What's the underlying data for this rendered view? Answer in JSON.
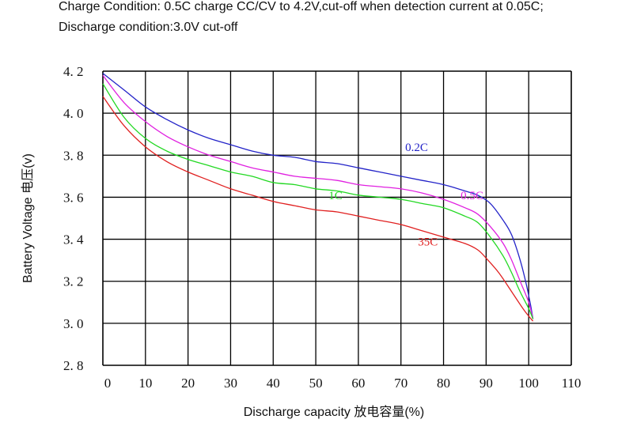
{
  "header": {
    "line1": "Charge Condition: 0.5C charge CC/CV to 4.2V,cut-off when detection current at 0.05C;",
    "line2": "Discharge condition:3.0V cut-off"
  },
  "chart_data": {
    "type": "line",
    "xlabel": "Discharge capacity 放电容量(%)",
    "ylabel": "Battery Voltage 电压(v)",
    "xlim": [
      0,
      110
    ],
    "ylim": [
      2.8,
      4.2
    ],
    "x_ticks": [
      "0",
      "10",
      "20",
      "30",
      "40",
      "50",
      "60",
      "70",
      "80",
      "90",
      "100",
      "110"
    ],
    "y_ticks": [
      "4. 2",
      "4. 0",
      "3. 8",
      "3. 6",
      "3. 4",
      "3. 2",
      "3. 0",
      "2. 8"
    ],
    "y_tick_values": [
      4.2,
      4.0,
      3.8,
      3.6,
      3.4,
      3.2,
      3.0,
      2.8
    ],
    "grid": true,
    "series": [
      {
        "name": "0.2C",
        "color": "#2323c8",
        "label_at": [
          71,
          3.82
        ],
        "points": [
          [
            0,
            4.19
          ],
          [
            5,
            4.11
          ],
          [
            10,
            4.03
          ],
          [
            15,
            3.97
          ],
          [
            20,
            3.92
          ],
          [
            25,
            3.88
          ],
          [
            30,
            3.85
          ],
          [
            35,
            3.82
          ],
          [
            40,
            3.8
          ],
          [
            45,
            3.79
          ],
          [
            50,
            3.77
          ],
          [
            55,
            3.76
          ],
          [
            60,
            3.74
          ],
          [
            65,
            3.72
          ],
          [
            70,
            3.7
          ],
          [
            75,
            3.68
          ],
          [
            80,
            3.66
          ],
          [
            85,
            3.63
          ],
          [
            88,
            3.61
          ],
          [
            91,
            3.57
          ],
          [
            94,
            3.49
          ],
          [
            96,
            3.42
          ],
          [
            98,
            3.3
          ],
          [
            99.5,
            3.18
          ],
          [
            100.5,
            3.08
          ],
          [
            101,
            3.02
          ]
        ]
      },
      {
        "name": "0.5C",
        "color": "#e020e0",
        "label_at": [
          84,
          3.59
        ],
        "points": [
          [
            0,
            4.18
          ],
          [
            5,
            4.05
          ],
          [
            10,
            3.96
          ],
          [
            15,
            3.89
          ],
          [
            20,
            3.84
          ],
          [
            25,
            3.8
          ],
          [
            30,
            3.77
          ],
          [
            35,
            3.74
          ],
          [
            40,
            3.72
          ],
          [
            45,
            3.7
          ],
          [
            50,
            3.69
          ],
          [
            55,
            3.68
          ],
          [
            60,
            3.66
          ],
          [
            65,
            3.65
          ],
          [
            70,
            3.64
          ],
          [
            75,
            3.62
          ],
          [
            80,
            3.59
          ],
          [
            85,
            3.55
          ],
          [
            88,
            3.52
          ],
          [
            91,
            3.46
          ],
          [
            94,
            3.38
          ],
          [
            96,
            3.3
          ],
          [
            98,
            3.2
          ],
          [
            100,
            3.1
          ],
          [
            101,
            3.02
          ]
        ]
      },
      {
        "name": "1C",
        "color": "#22d822",
        "label_at": [
          53,
          3.59
        ],
        "points": [
          [
            0,
            4.14
          ],
          [
            5,
            3.98
          ],
          [
            10,
            3.88
          ],
          [
            15,
            3.82
          ],
          [
            20,
            3.78
          ],
          [
            25,
            3.75
          ],
          [
            30,
            3.72
          ],
          [
            35,
            3.7
          ],
          [
            40,
            3.67
          ],
          [
            45,
            3.66
          ],
          [
            50,
            3.64
          ],
          [
            55,
            3.63
          ],
          [
            60,
            3.61
          ],
          [
            65,
            3.6
          ],
          [
            70,
            3.59
          ],
          [
            75,
            3.57
          ],
          [
            80,
            3.55
          ],
          [
            85,
            3.51
          ],
          [
            88,
            3.48
          ],
          [
            91,
            3.41
          ],
          [
            94,
            3.32
          ],
          [
            96,
            3.24
          ],
          [
            98,
            3.15
          ],
          [
            100,
            3.07
          ],
          [
            101,
            3.02
          ]
        ]
      },
      {
        "name": "35C",
        "color": "#e02020",
        "label_at": [
          74,
          3.37
        ],
        "points": [
          [
            0,
            4.08
          ],
          [
            5,
            3.94
          ],
          [
            10,
            3.84
          ],
          [
            15,
            3.77
          ],
          [
            20,
            3.72
          ],
          [
            25,
            3.68
          ],
          [
            30,
            3.64
          ],
          [
            35,
            3.61
          ],
          [
            40,
            3.58
          ],
          [
            45,
            3.56
          ],
          [
            50,
            3.54
          ],
          [
            55,
            3.53
          ],
          [
            60,
            3.51
          ],
          [
            65,
            3.49
          ],
          [
            70,
            3.47
          ],
          [
            75,
            3.44
          ],
          [
            80,
            3.41
          ],
          [
            85,
            3.38
          ],
          [
            88,
            3.35
          ],
          [
            90,
            3.31
          ],
          [
            93,
            3.24
          ],
          [
            96,
            3.15
          ],
          [
            99,
            3.06
          ],
          [
            101,
            3.01
          ]
        ]
      }
    ]
  }
}
